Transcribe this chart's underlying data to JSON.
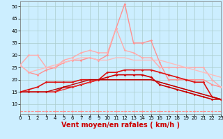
{
  "x": [
    0,
    1,
    2,
    3,
    4,
    5,
    6,
    7,
    8,
    9,
    10,
    11,
    12,
    13,
    14,
    15,
    16,
    17,
    18,
    19,
    20,
    21,
    22,
    23
  ],
  "light_series": [
    {
      "y": [
        26,
        23,
        22,
        24,
        25,
        27,
        28,
        28,
        29,
        28,
        30,
        41,
        51,
        35,
        35,
        36,
        27,
        20,
        20,
        20,
        20,
        20,
        18,
        17
      ],
      "color": "#ff9090",
      "lw": 1.0,
      "marker": "D",
      "ms": 1.8
    },
    {
      "y": [
        26,
        30,
        30,
        25,
        25,
        28,
        29,
        31,
        32,
        31,
        31,
        41,
        32,
        31,
        29,
        29,
        25,
        25,
        25,
        25,
        25,
        25,
        20,
        17
      ],
      "color": "#ffaaaa",
      "lw": 1.0,
      "marker": "D",
      "ms": 1.8
    },
    {
      "y": [
        26,
        23,
        24,
        25,
        26,
        27,
        28,
        29,
        29,
        28,
        28,
        29,
        29,
        28,
        28,
        28,
        28,
        27,
        26,
        25,
        24,
        23,
        22,
        21
      ],
      "color": "#ffbbbb",
      "lw": 1.0,
      "marker": null,
      "ms": 0
    }
  ],
  "dark_series": [
    {
      "y": [
        15,
        15,
        15,
        15,
        15,
        17,
        17,
        18,
        19,
        20,
        21,
        22,
        22,
        22,
        22,
        21,
        18,
        17,
        16,
        15,
        14,
        13,
        12,
        12
      ],
      "color": "#cc0000",
      "lw": 1.2,
      "marker": "D",
      "ms": 1.8
    },
    {
      "y": [
        15,
        16,
        17,
        19,
        19,
        19,
        19,
        20,
        20,
        20,
        23,
        23,
        24,
        24,
        24,
        24,
        23,
        22,
        21,
        20,
        19,
        19,
        13,
        12
      ],
      "color": "#dd1111",
      "lw": 1.2,
      "marker": "D",
      "ms": 1.8
    },
    {
      "y": [
        15,
        15,
        15,
        15,
        15,
        16,
        17,
        18,
        19,
        20,
        20,
        20,
        20,
        20,
        20,
        20,
        19,
        18,
        17,
        16,
        15,
        14,
        13,
        12
      ],
      "color": "#ee3333",
      "lw": 1.0,
      "marker": null,
      "ms": 0
    },
    {
      "y": [
        15,
        15,
        15,
        15,
        16,
        17,
        18,
        19,
        20,
        20,
        20,
        20,
        20,
        20,
        20,
        20,
        19,
        18,
        17,
        16,
        15,
        14,
        13,
        12
      ],
      "color": "#bb0000",
      "lw": 1.0,
      "marker": null,
      "ms": 0
    }
  ],
  "dash_y": [
    7,
    7,
    7,
    7,
    7,
    7,
    7,
    7,
    7,
    7,
    7,
    7,
    7,
    7,
    7,
    7,
    7,
    7,
    7,
    7,
    7,
    7,
    7,
    7
  ],
  "dash_color": "#ff8888",
  "xlabel": "Vent moyen/en rafales ( km/h )",
  "xlim": [
    0,
    23
  ],
  "ylim": [
    6,
    52
  ],
  "yticks": [
    10,
    15,
    20,
    25,
    30,
    35,
    40,
    45,
    50
  ],
  "xticks": [
    0,
    1,
    2,
    3,
    4,
    5,
    6,
    7,
    8,
    9,
    10,
    11,
    12,
    13,
    14,
    15,
    16,
    17,
    18,
    19,
    20,
    21,
    22,
    23
  ],
  "bg_color": "#cceeff",
  "grid_color": "#aacccc",
  "xlabel_fontsize": 7,
  "tick_fontsize": 5
}
